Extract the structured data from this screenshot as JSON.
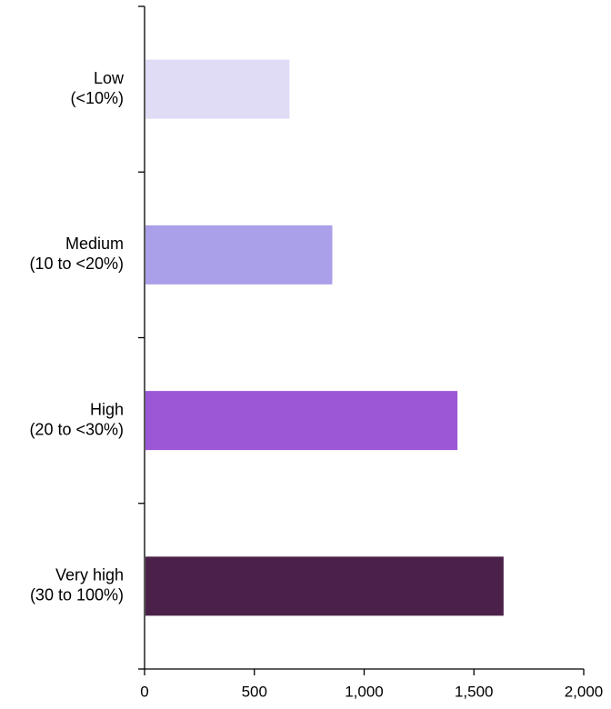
{
  "chart_data": {
    "type": "bar",
    "orientation": "horizontal",
    "categories": [
      [
        "Low",
        "(<10%)"
      ],
      [
        "Medium",
        "(10 to <20%)"
      ],
      [
        "High",
        "(20 to <30%)"
      ],
      [
        "Very high",
        "(30 to 100%)"
      ]
    ],
    "values": [
      660,
      855,
      1425,
      1635
    ],
    "colors": [
      "#e0dcf6",
      "#aa9fe9",
      "#9b57d6",
      "#4b2149"
    ],
    "xlim": [
      0,
      2000
    ],
    "xticks": [
      0,
      500,
      1000,
      1500,
      2000
    ],
    "xtick_labels": [
      "0",
      "500",
      "1,000",
      "1,500",
      "2,000"
    ],
    "title": "",
    "xlabel": "",
    "ylabel": "",
    "grid": false,
    "legend": "none"
  }
}
